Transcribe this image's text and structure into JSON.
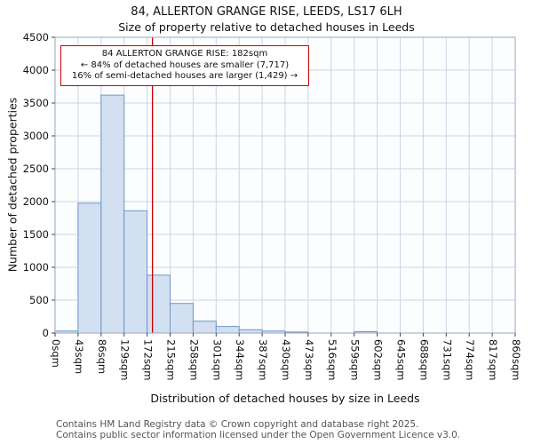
{
  "annotation": {
    "line1": "84 ALLERTON GRANGE RISE: 182sqm",
    "line2": "← 84% of detached houses are smaller (7,717)",
    "line3": "16% of semi-detached houses are larger (1,429) →"
  },
  "footer": {
    "line1": "Contains HM Land Registry data © Crown copyright and database right 2025.",
    "line2": "Contains public sector information licensed under the Open Government Licence v3.0."
  },
  "chart_data": {
    "type": "bar",
    "title": "84, ALLERTON GRANGE RISE, LEEDS, LS17 6LH",
    "subtitle": "Size of property relative to detached houses in Leeds",
    "xlabel": "Distribution of detached houses by size in Leeds",
    "ylabel": "Number of detached properties",
    "categories": [
      "0sqm",
      "43sqm",
      "86sqm",
      "129sqm",
      "172sqm",
      "215sqm",
      "258sqm",
      "301sqm",
      "344sqm",
      "387sqm",
      "430sqm",
      "473sqm",
      "516sqm",
      "559sqm",
      "602sqm",
      "645sqm",
      "688sqm",
      "731sqm",
      "774sqm",
      "817sqm",
      "860sqm"
    ],
    "values": [
      30,
      1975,
      3620,
      1860,
      880,
      450,
      180,
      100,
      50,
      30,
      15,
      0,
      0,
      20,
      0,
      0,
      0,
      0,
      0,
      0
    ],
    "bin_width_sqm": 43,
    "xmax": 860,
    "ylim": [
      0,
      4500
    ],
    "yticks": [
      0,
      500,
      1000,
      1500,
      2000,
      2500,
      3000,
      3500,
      4000,
      4500
    ],
    "grid": true,
    "legend": null,
    "marker_value": 182,
    "marker_label": "182sqm",
    "colors": {
      "bar_fill": "#d2e0f2",
      "bar_border": "#6e96c8",
      "grid": "#ccd4e6",
      "marker": "#cc0000",
      "annotation_border": "#cc0000",
      "plot_border": "#9aa5bd"
    }
  }
}
